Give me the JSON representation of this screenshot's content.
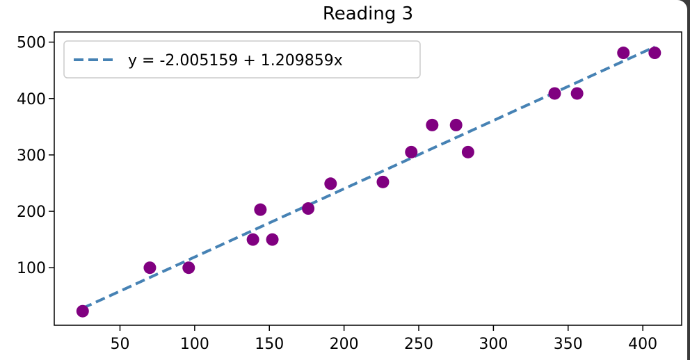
{
  "chart_data": {
    "type": "scatter",
    "title": "Reading 3",
    "xlabel": "",
    "ylabel": "",
    "xlim": [
      6,
      426
    ],
    "ylim": [
      -2,
      518
    ],
    "xticks": [
      50,
      100,
      150,
      200,
      250,
      300,
      350,
      400
    ],
    "yticks": [
      100,
      200,
      300,
      400,
      500
    ],
    "grid": false,
    "legend_position": "upper-left",
    "series": [
      {
        "type": "scatter",
        "color": "#800080",
        "points": [
          {
            "x": 25,
            "y": 23
          },
          {
            "x": 70,
            "y": 100
          },
          {
            "x": 96,
            "y": 100
          },
          {
            "x": 139,
            "y": 150
          },
          {
            "x": 144,
            "y": 203
          },
          {
            "x": 152,
            "y": 150
          },
          {
            "x": 176,
            "y": 205
          },
          {
            "x": 191,
            "y": 249
          },
          {
            "x": 226,
            "y": 252
          },
          {
            "x": 245,
            "y": 305
          },
          {
            "x": 259,
            "y": 353
          },
          {
            "x": 275,
            "y": 353
          },
          {
            "x": 283,
            "y": 305
          },
          {
            "x": 341,
            "y": 409
          },
          {
            "x": 356,
            "y": 409
          },
          {
            "x": 387,
            "y": 481
          },
          {
            "x": 408,
            "y": 481
          }
        ]
      },
      {
        "type": "line",
        "name": "y = -2.005159 + 1.209859x",
        "color": "#4682b4",
        "dashed": true,
        "intercept": -2.005159,
        "slope": 1.209859,
        "x_range": [
          25,
          408
        ]
      }
    ]
  }
}
